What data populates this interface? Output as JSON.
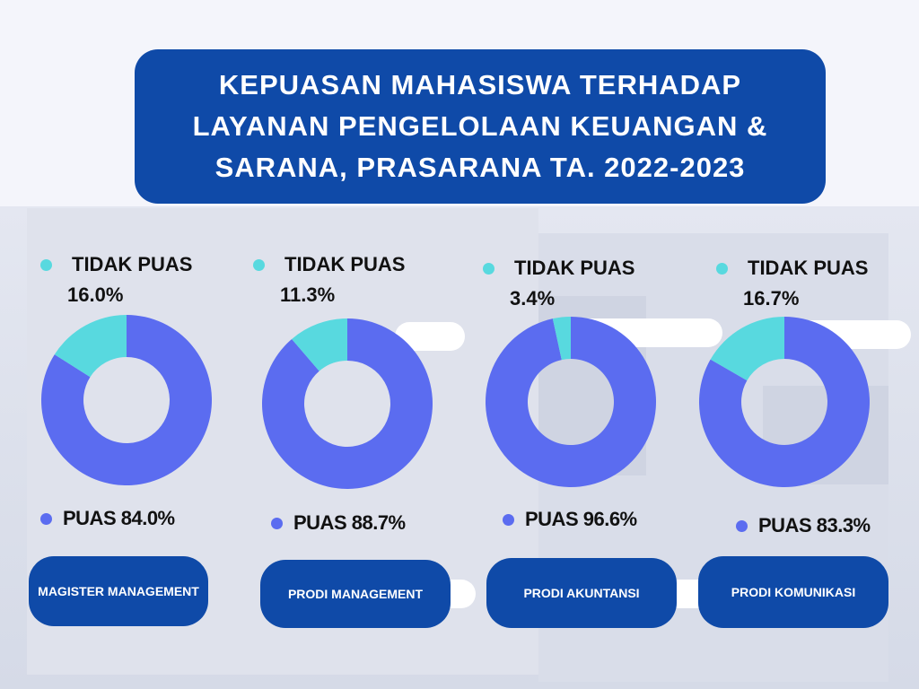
{
  "title": {
    "lines": [
      "KEPUASAN MAHASISWA TERHADAP",
      "LAYANAN PENGELOLAAN KEUANGAN &",
      "SARANA, PRASARANA TA. 2022-2023"
    ]
  },
  "colors": {
    "tidak_puas": "#58d9df",
    "puas": "#5b6cf0",
    "box": "#0f4aa8"
  },
  "chart_data": [
    {
      "type": "pie",
      "program": "MAGISTER MANAGEMENT",
      "slices": [
        {
          "label": "TIDAK PUAS",
          "value": 16.0
        },
        {
          "label": "PUAS",
          "value": 84.0
        }
      ],
      "tidak_label": "TIDAK PUAS",
      "tidak_pct": "16.0%",
      "puas_text": "PUAS 84.0%"
    },
    {
      "type": "pie",
      "program": "PRODI MANAGEMENT",
      "slices": [
        {
          "label": "TIDAK PUAS",
          "value": 11.3
        },
        {
          "label": "PUAS",
          "value": 88.7
        }
      ],
      "tidak_label": "TIDAK PUAS",
      "tidak_pct": "11.3%",
      "puas_text": "PUAS 88.7%"
    },
    {
      "type": "pie",
      "program": "PRODI AKUNTANSI",
      "slices": [
        {
          "label": "TIDAK PUAS",
          "value": 3.4
        },
        {
          "label": "PUAS",
          "value": 96.6
        }
      ],
      "tidak_label": "TIDAK PUAS",
      "tidak_pct": "3.4%",
      "puas_text": "PUAS 96.6%"
    },
    {
      "type": "pie",
      "program": "PRODI KOMUNIKASI",
      "slices": [
        {
          "label": "TIDAK PUAS",
          "value": 16.7
        },
        {
          "label": "PUAS",
          "value": 83.3
        }
      ],
      "tidak_label": "TIDAK PUAS",
      "tidak_pct": "16.7%",
      "puas_text": "PUAS 83.3%"
    }
  ]
}
